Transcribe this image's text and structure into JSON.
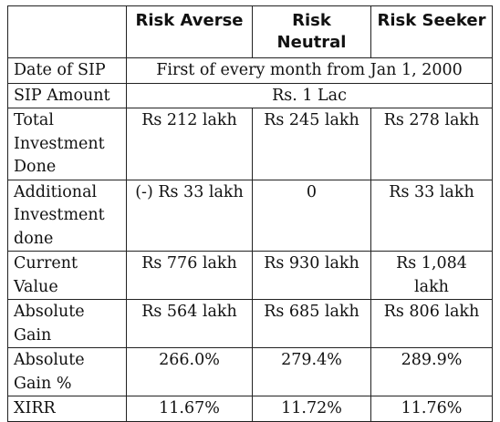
{
  "table": {
    "headers": [
      "",
      "Risk Averse",
      "Risk Neutral",
      "Risk Seeker"
    ],
    "rows": [
      {
        "label": "Date of SIP",
        "merged": "First of every month from Jan 1, 2000"
      },
      {
        "label": "SIP Amount",
        "merged": "Rs. 1 Lac"
      },
      {
        "label": "Total Investment Done",
        "values": [
          "Rs 212 lakh",
          "Rs 245 lakh",
          "Rs 278 lakh"
        ]
      },
      {
        "label": "Additional Investment done",
        "values": [
          "(-) Rs 33 lakh",
          "0",
          "Rs 33 lakh"
        ]
      },
      {
        "label": "Current Value",
        "values": [
          "Rs 776 lakh",
          "Rs 930 lakh",
          "Rs 1,084 lakh"
        ]
      },
      {
        "label": "Absolute Gain",
        "values": [
          "Rs 564 lakh",
          "Rs 685 lakh",
          "Rs 806 lakh"
        ]
      },
      {
        "label": "Absolute Gain %",
        "values": [
          "266.0%",
          "279.4%",
          "289.9%"
        ]
      },
      {
        "label": "XIRR",
        "values": [
          "11.67%",
          "11.72%",
          "11.76%"
        ]
      }
    ]
  }
}
